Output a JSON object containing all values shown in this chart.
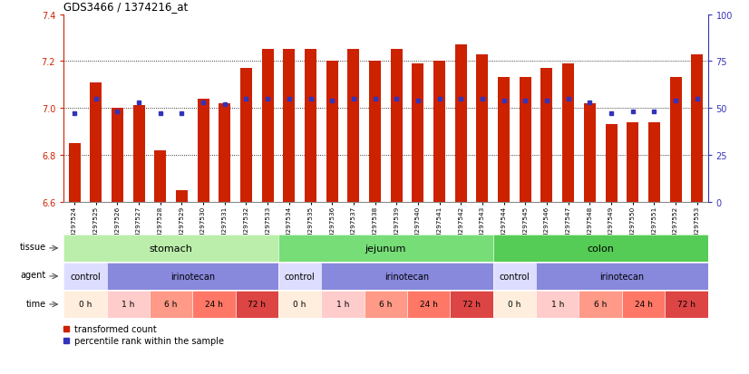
{
  "title": "GDS3466 / 1374216_at",
  "samples": [
    "GSM297524",
    "GSM297525",
    "GSM297526",
    "GSM297527",
    "GSM297528",
    "GSM297529",
    "GSM297530",
    "GSM297531",
    "GSM297532",
    "GSM297533",
    "GSM297534",
    "GSM297535",
    "GSM297536",
    "GSM297537",
    "GSM297538",
    "GSM297539",
    "GSM297540",
    "GSM297541",
    "GSM297542",
    "GSM297543",
    "GSM297544",
    "GSM297545",
    "GSM297546",
    "GSM297547",
    "GSM297548",
    "GSM297549",
    "GSM297550",
    "GSM297551",
    "GSM297552",
    "GSM297553"
  ],
  "bar_values": [
    6.85,
    7.11,
    7.0,
    7.01,
    6.82,
    6.65,
    7.04,
    7.02,
    7.17,
    7.25,
    7.25,
    7.25,
    7.2,
    7.25,
    7.2,
    7.25,
    7.19,
    7.2,
    7.27,
    7.23,
    7.13,
    7.13,
    7.17,
    7.19,
    7.02,
    6.93,
    6.94,
    6.94,
    7.13,
    7.23
  ],
  "percentile_values": [
    47,
    55,
    48,
    53,
    47,
    47,
    53,
    52,
    55,
    55,
    55,
    55,
    54,
    55,
    55,
    55,
    54,
    55,
    55,
    55,
    54,
    54,
    54,
    55,
    53,
    47,
    48,
    48,
    54,
    55
  ],
  "ylim_left": [
    6.6,
    7.4
  ],
  "ylim_right": [
    0,
    100
  ],
  "yticks_left": [
    6.6,
    6.8,
    7.0,
    7.2,
    7.4
  ],
  "yticks_right": [
    0,
    25,
    50,
    75,
    100
  ],
  "bar_color": "#CC2200",
  "marker_color": "#3333BB",
  "baseline": 6.6,
  "tissue_groups": [
    {
      "label": "stomach",
      "start": 0,
      "end": 10,
      "color": "#BBEEAA"
    },
    {
      "label": "jejunum",
      "start": 10,
      "end": 20,
      "color": "#77DD77"
    },
    {
      "label": "colon",
      "start": 20,
      "end": 30,
      "color": "#55CC55"
    }
  ],
  "agent_groups": [
    {
      "label": "control",
      "start": 0,
      "end": 2,
      "color": "#DDDDFF"
    },
    {
      "label": "irinotecan",
      "start": 2,
      "end": 10,
      "color": "#8888DD"
    },
    {
      "label": "control",
      "start": 10,
      "end": 12,
      "color": "#DDDDFF"
    },
    {
      "label": "irinotecan",
      "start": 12,
      "end": 20,
      "color": "#8888DD"
    },
    {
      "label": "control",
      "start": 20,
      "end": 22,
      "color": "#DDDDFF"
    },
    {
      "label": "irinotecan",
      "start": 22,
      "end": 30,
      "color": "#8888DD"
    }
  ],
  "time_groups": [
    {
      "label": "0 h",
      "start": 0,
      "end": 2,
      "color": "#FFEEDD"
    },
    {
      "label": "1 h",
      "start": 2,
      "end": 4,
      "color": "#FFCCCC"
    },
    {
      "label": "6 h",
      "start": 4,
      "end": 6,
      "color": "#FF9988"
    },
    {
      "label": "24 h",
      "start": 6,
      "end": 8,
      "color": "#FF7766"
    },
    {
      "label": "72 h",
      "start": 8,
      "end": 10,
      "color": "#DD4444"
    },
    {
      "label": "0 h",
      "start": 10,
      "end": 12,
      "color": "#FFEEDD"
    },
    {
      "label": "1 h",
      "start": 12,
      "end": 14,
      "color": "#FFCCCC"
    },
    {
      "label": "6 h",
      "start": 14,
      "end": 16,
      "color": "#FF9988"
    },
    {
      "label": "24 h",
      "start": 16,
      "end": 18,
      "color": "#FF7766"
    },
    {
      "label": "72 h",
      "start": 18,
      "end": 20,
      "color": "#DD4444"
    },
    {
      "label": "0 h",
      "start": 20,
      "end": 22,
      "color": "#FFEEDD"
    },
    {
      "label": "1 h",
      "start": 22,
      "end": 24,
      "color": "#FFCCCC"
    },
    {
      "label": "6 h",
      "start": 24,
      "end": 26,
      "color": "#FF9988"
    },
    {
      "label": "24 h",
      "start": 26,
      "end": 28,
      "color": "#FF7766"
    },
    {
      "label": "72 h",
      "start": 28,
      "end": 30,
      "color": "#DD4444"
    }
  ],
  "legend_items": [
    {
      "label": "transformed count",
      "color": "#CC2200"
    },
    {
      "label": "percentile rank within the sample",
      "color": "#3333BB"
    }
  ],
  "bg_color": "#F0F0F0"
}
